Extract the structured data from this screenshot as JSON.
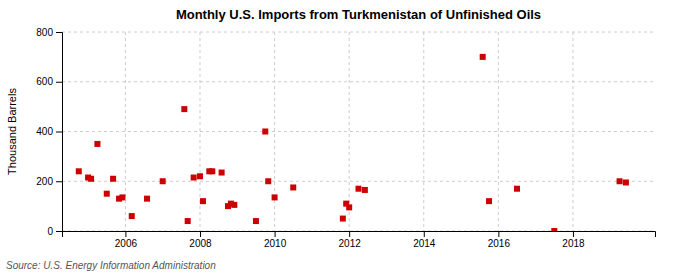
{
  "chart_data": {
    "type": "scatter",
    "title": "Monthly U.S. Imports from Turkmenistan of Unfinished Oils",
    "ylabel": "Thousand Barrels",
    "annotations": [
      "Source: U.S. Energy Information Administration"
    ],
    "color": "#cc0000",
    "marker": "square",
    "grid": true,
    "xlim": [
      2004.3,
      2020.2
    ],
    "xticks": [
      2006,
      2008,
      2010,
      2012,
      2014,
      2016,
      2018
    ],
    "ylim": [
      0,
      800
    ],
    "yticks": [
      0,
      200,
      400,
      600,
      800
    ],
    "x": [
      2004.75,
      2005.0,
      2005.08,
      2005.25,
      2005.5,
      2005.67,
      2005.83,
      2005.92,
      2006.17,
      2006.58,
      2007.0,
      2007.58,
      2007.67,
      2007.83,
      2008.0,
      2008.08,
      2008.25,
      2008.33,
      2008.58,
      2008.75,
      2008.83,
      2008.92,
      2009.5,
      2009.75,
      2009.83,
      2010.0,
      2010.5,
      2011.83,
      2011.92,
      2012.0,
      2012.25,
      2012.42,
      2015.58,
      2015.75,
      2016.5,
      2017.5,
      2019.25,
      2019.42
    ],
    "values": [
      240,
      215,
      210,
      350,
      150,
      210,
      130,
      135,
      60,
      130,
      200,
      490,
      40,
      215,
      220,
      120,
      240,
      240,
      235,
      100,
      110,
      105,
      40,
      400,
      200,
      135,
      175,
      50,
      110,
      95,
      170,
      165,
      700,
      120,
      170,
      0,
      200,
      195
    ]
  }
}
